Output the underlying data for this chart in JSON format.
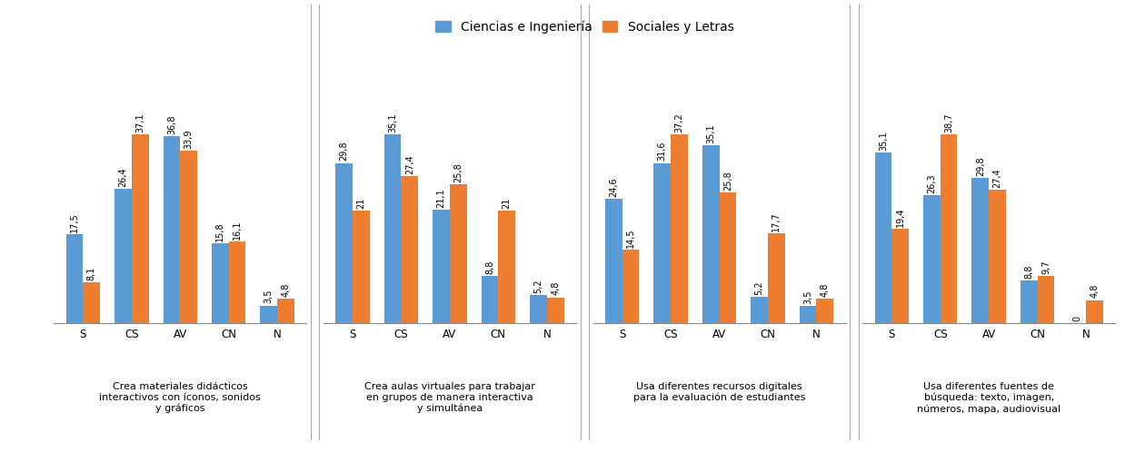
{
  "charts": [
    {
      "title": "Crea materiales didácticos\ninteractivos con íconos, sonidos\ny gráficos",
      "categories": [
        "S",
        "CS",
        "AV",
        "CN",
        "N"
      ],
      "ciencias": [
        17.5,
        26.4,
        36.8,
        15.8,
        3.5
      ],
      "sociales": [
        8.1,
        37.1,
        33.9,
        16.1,
        4.8
      ]
    },
    {
      "title": "Crea aulas virtuales para trabajar\nen grupos de manera interactiva\ny simultánea",
      "categories": [
        "S",
        "CS",
        "AV",
        "CN",
        "N"
      ],
      "ciencias": [
        29.8,
        35.1,
        21.1,
        8.8,
        5.2
      ],
      "sociales": [
        21.0,
        27.4,
        25.8,
        21.0,
        4.8
      ]
    },
    {
      "title": "Usa diferentes recursos digitales\npara la evaluación de estudiantes",
      "categories": [
        "S",
        "CS",
        "AV",
        "CN",
        "N"
      ],
      "ciencias": [
        24.6,
        31.6,
        35.1,
        5.2,
        3.5
      ],
      "sociales": [
        14.5,
        37.2,
        25.8,
        17.7,
        4.8
      ]
    },
    {
      "title": "Usa diferentes fuentes de\nbúsqueda: texto, imagen,\nnúmeros, mapa, audiovisual",
      "categories": [
        "S",
        "CS",
        "AV",
        "CN",
        "N"
      ],
      "ciencias": [
        35.1,
        26.3,
        29.8,
        8.8,
        0.0
      ],
      "sociales": [
        19.4,
        38.7,
        27.4,
        9.7,
        4.8
      ]
    }
  ],
  "legend_ciencias": "Ciencias e Ingeniería",
  "legend_sociales": "Sociales y Letras",
  "color_ciencias": "#5B9BD5",
  "color_sociales": "#ED7D31",
  "bar_width": 0.35,
  "title_fontsize": 8.0,
  "value_fontsize": 7.0,
  "tick_fontsize": 8.5,
  "legend_fontsize": 10.0,
  "background_color": "#FFFFFF",
  "ylim_max": 50.0
}
